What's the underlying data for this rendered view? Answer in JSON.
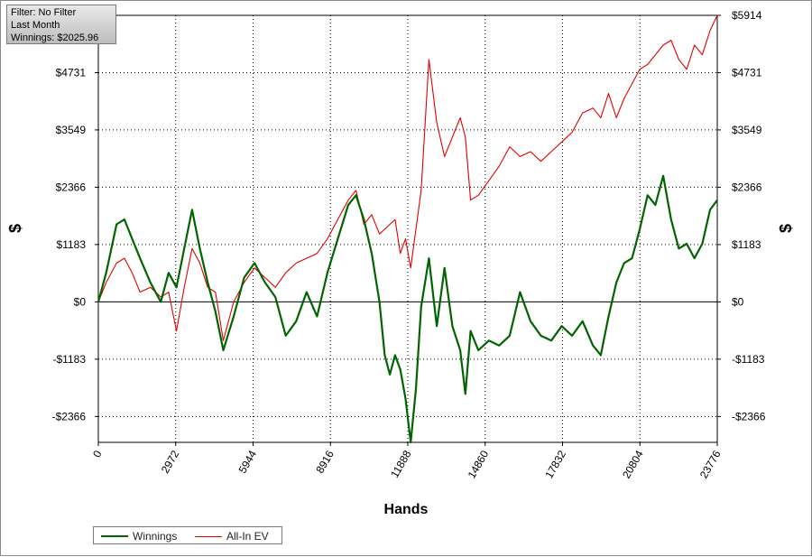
{
  "filter_box": {
    "line1": "Filter: No Filter",
    "line2": "Last Month",
    "line3": "Winnings: $2025.96"
  },
  "chart_data": {
    "type": "line",
    "xlabel": "Hands",
    "ylabel_left": "$",
    "ylabel_right": "$",
    "xlim": [
      0,
      23776
    ],
    "ylim": [
      -2900,
      5914
    ],
    "x_ticks": [
      0,
      2972,
      5944,
      8916,
      11888,
      14860,
      17832,
      20804,
      23776
    ],
    "x_tick_labels": [
      "0",
      "2972",
      "5944",
      "8916",
      "11888",
      "14860",
      "17832",
      "20804",
      "23776"
    ],
    "y_ticks": [
      -2366,
      -1183,
      0,
      1183,
      2366,
      3549,
      4731,
      5914
    ],
    "y_tick_labels": [
      "-$2366",
      "-$1183",
      "$0",
      "$1183",
      "$2366",
      "$3549",
      "$4731",
      "$5914"
    ],
    "grid": true,
    "legend_position": "bottom-left",
    "series": [
      {
        "name": "Winnings",
        "color": "#006400",
        "x": [
          0,
          300,
          700,
          1000,
          1300,
          1600,
          2000,
          2400,
          2700,
          3000,
          3300,
          3600,
          3900,
          4200,
          4500,
          4800,
          5200,
          5600,
          6000,
          6400,
          6800,
          7200,
          7600,
          8000,
          8400,
          8800,
          9200,
          9600,
          9900,
          10200,
          10500,
          10800,
          11000,
          11200,
          11400,
          11600,
          11800,
          12000,
          12200,
          12400,
          12700,
          13000,
          13300,
          13600,
          13900,
          14100,
          14300,
          14600,
          15000,
          15400,
          15800,
          16200,
          16600,
          17000,
          17400,
          17800,
          18200,
          18600,
          19000,
          19300,
          19600,
          19900,
          20200,
          20500,
          20800,
          21100,
          21400,
          21700,
          22000,
          22300,
          22600,
          22900,
          23200,
          23500,
          23776
        ],
        "y": [
          0,
          600,
          1600,
          1700,
          1300,
          900,
          400,
          0,
          600,
          300,
          1100,
          1900,
          1100,
          400,
          -200,
          -1000,
          -300,
          500,
          800,
          400,
          100,
          -700,
          -400,
          200,
          -300,
          600,
          1300,
          2000,
          2200,
          1700,
          1000,
          0,
          -1100,
          -1500,
          -1100,
          -1400,
          -2000,
          -2900,
          -1800,
          -100,
          900,
          -500,
          700,
          -500,
          -1000,
          -1900,
          -600,
          -1000,
          -800,
          -900,
          -700,
          200,
          -400,
          -700,
          -800,
          -500,
          -700,
          -400,
          -900,
          -1100,
          -300,
          400,
          800,
          900,
          1500,
          2200,
          2000,
          2600,
          1700,
          1100,
          1200,
          900,
          1200,
          1900,
          2100
        ]
      },
      {
        "name": "All-In EV",
        "color": "#e00000",
        "x": [
          0,
          300,
          700,
          1000,
          1300,
          1600,
          2000,
          2400,
          2700,
          3000,
          3300,
          3600,
          3900,
          4200,
          4500,
          4800,
          5200,
          5600,
          6000,
          6400,
          6800,
          7200,
          7600,
          8000,
          8400,
          8800,
          9200,
          9600,
          9900,
          10200,
          10500,
          10800,
          11000,
          11200,
          11400,
          11600,
          11800,
          12000,
          12200,
          12400,
          12700,
          13000,
          13300,
          13600,
          13900,
          14100,
          14300,
          14600,
          15000,
          15400,
          15800,
          16200,
          16600,
          17000,
          17400,
          17800,
          18200,
          18600,
          19000,
          19300,
          19600,
          19900,
          20200,
          20500,
          20800,
          21100,
          21400,
          21700,
          22000,
          22300,
          22600,
          22900,
          23200,
          23500,
          23776
        ],
        "y": [
          0,
          400,
          800,
          900,
          600,
          200,
          300,
          100,
          200,
          -600,
          300,
          1100,
          800,
          300,
          200,
          -800,
          0,
          400,
          700,
          500,
          300,
          600,
          800,
          900,
          1000,
          1300,
          1700,
          2100,
          2300,
          1600,
          1800,
          1400,
          1500,
          1600,
          1700,
          1000,
          1300,
          700,
          1500,
          2300,
          5000,
          3700,
          3000,
          3400,
          3800,
          3400,
          2100,
          2200,
          2500,
          2800,
          3200,
          3000,
          3100,
          2900,
          3100,
          3300,
          3500,
          3900,
          4000,
          3800,
          4300,
          3800,
          4200,
          4500,
          4800,
          4900,
          5100,
          5300,
          5400,
          5000,
          4800,
          5300,
          5100,
          5600,
          5914
        ]
      }
    ]
  }
}
